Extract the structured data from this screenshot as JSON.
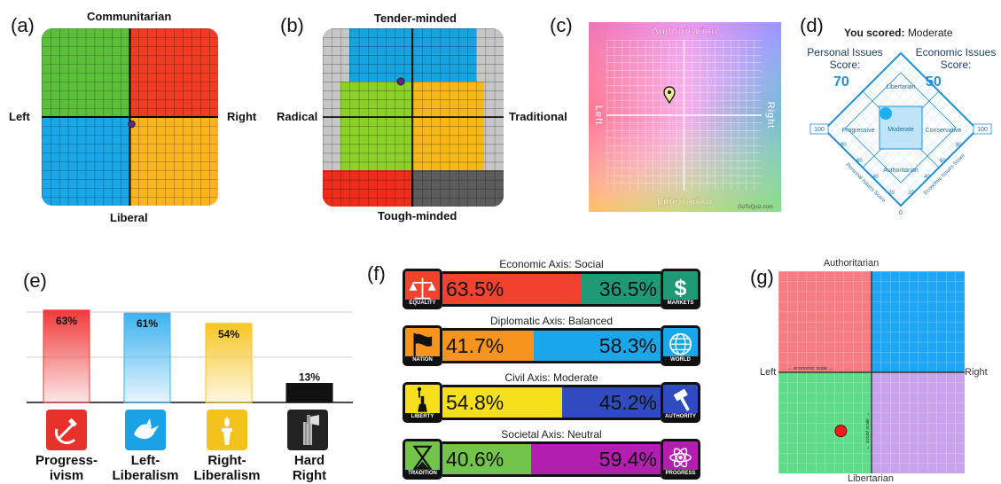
{
  "panel_a": {
    "label": "(a)",
    "top": "Communitarian",
    "left": "Left",
    "right": "Right",
    "bottom": "Liberal",
    "colors": {
      "tl": "#5bbf3a",
      "tr": "#f23b24",
      "bl": "#1aa7e8",
      "br": "#f9b51e"
    },
    "marker": {
      "economic": 0.02,
      "social": -0.08
    }
  },
  "panel_b": {
    "label": "(b)",
    "top": "Tender-minded",
    "left": "Radical",
    "right": "Traditional",
    "bottom": "Tough-minded",
    "colors": {
      "blue": "#17a2e0",
      "green": "#8cd12a",
      "yellow": "#f7b918",
      "red": "#ef2d1c",
      "dark": "#5c5c5c",
      "grey": "#c6c6c6"
    }
  },
  "panel_c": {
    "label": "(c)",
    "top": "Authoritarian",
    "bottom": "Libertarian",
    "left": "Left",
    "right": "Right",
    "watermark": "GoToQuiz.com"
  },
  "panel_d": {
    "label": "(d)",
    "scored_prefix": "You scored:",
    "scored_value": "Moderate",
    "personal_title_1": "Personal Issues",
    "personal_title_2": "Score:",
    "personal_value": "70",
    "economic_title_1": "Economic Issues",
    "economic_title_2": "Score:",
    "economic_value": "50",
    "regions": {
      "top": "Libertarian",
      "left": "Progressive",
      "center": "Moderate",
      "right": "Conservative",
      "bottom": "Authoritarian"
    },
    "axis_left": "100",
    "axis_right": "100",
    "axis_bottom": "0",
    "axis_personal": "Personal Issues Score",
    "axis_economic": "Economic Issues Score",
    "ticks_left": [
      "80",
      "60",
      "40",
      "20"
    ],
    "ticks_right": [
      "80",
      "60",
      "40",
      "20"
    ],
    "accent": "#1e90d8"
  },
  "panel_e": {
    "label": "(e)",
    "chart_data": {
      "type": "bar",
      "categories": [
        "Progress-ivism",
        "Left-Liberalism",
        "Right-Liberalism",
        "Hard Right"
      ],
      "values": [
        63,
        61,
        54,
        13
      ],
      "value_labels": [
        "63%",
        "61%",
        "54%",
        "13%"
      ],
      "ylim": [
        0,
        100
      ],
      "colors": [
        "#f03a3a",
        "#3db3f0",
        "#f7c623",
        "#111111"
      ]
    },
    "names_line1": [
      "Progress-",
      "Left-",
      "Right-",
      "Hard"
    ],
    "names_line2": [
      "ivism",
      "Liberalism",
      "Liberalism",
      "Right"
    ],
    "icons": [
      "hammer-sickle-icon",
      "dove-icon",
      "torch-icon",
      "axe-fasces-icon"
    ]
  },
  "panel_f": {
    "label": "(f)",
    "axes": [
      {
        "title": "Economic Axis: Social",
        "left_tag": "EQUALITY",
        "right_tag": "MARKETS",
        "left_value": "63.5%",
        "right_value": "36.5%",
        "left_pct": 63.5,
        "left_color": "#f2422f",
        "right_color": "#1f9a77",
        "left_icon": "scales-icon",
        "right_icon": "dollar-icon"
      },
      {
        "title": "Diplomatic Axis: Balanced",
        "left_tag": "NATION",
        "right_tag": "WORLD",
        "left_value": "41.7%",
        "right_value": "58.3%",
        "left_pct": 41.7,
        "left_color": "#f7941d",
        "right_color": "#19a6ea",
        "left_icon": "flag-icon",
        "right_icon": "globe-icon"
      },
      {
        "title": "Civil Axis: Moderate",
        "left_tag": "LIBERTY",
        "right_tag": "AUTHORITY",
        "left_value": "54.8%",
        "right_value": "45.2%",
        "left_pct": 54.8,
        "left_color": "#f6e01b",
        "right_color": "#2f4bbf",
        "left_icon": "statue-of-liberty-icon",
        "right_icon": "gavel-icon"
      },
      {
        "title": "Societal Axis: Neutral",
        "left_tag": "TRADITION",
        "right_tag": "PROGRESS",
        "left_value": "40.6%",
        "right_value": "59.4%",
        "left_pct": 40.6,
        "left_color": "#72c54a",
        "right_color": "#b21fb0",
        "left_icon": "hourglass-icon",
        "right_icon": "atom-icon"
      }
    ]
  },
  "panel_g": {
    "label": "(g)",
    "top": "Authoritarian",
    "left": "Left",
    "right": "Right",
    "bottom": "Libertarian",
    "economic_scale": "← economic scale →",
    "social_scale": "← social scale →",
    "colors": {
      "tl": "#f57c80",
      "tr": "#1ea6f5",
      "bl": "#5fdc8a",
      "br": "#c8a3ec"
    },
    "marker": {
      "economic": -3.3,
      "social": -5.8
    }
  }
}
